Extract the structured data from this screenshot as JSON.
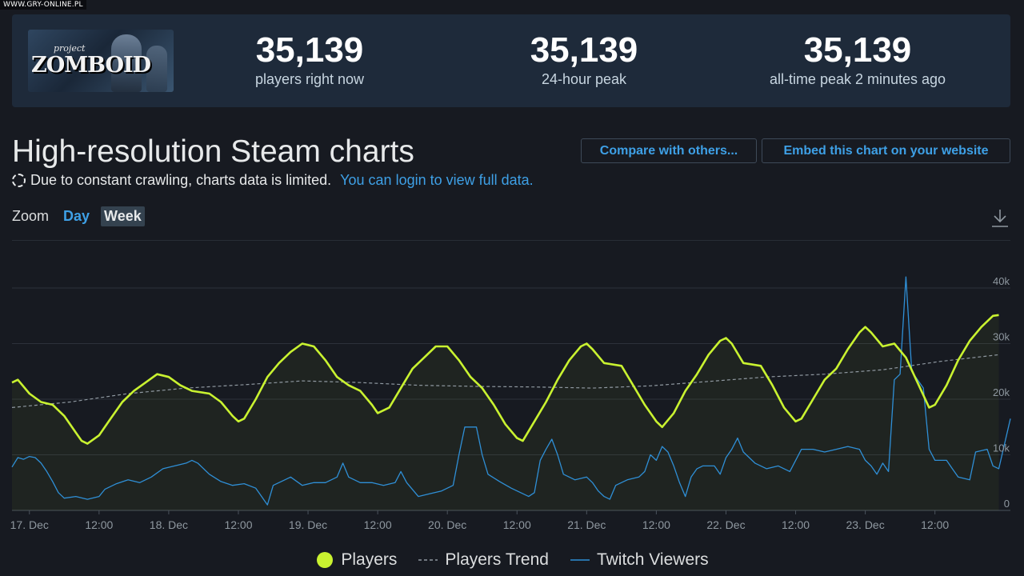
{
  "watermark": "WWW.GRY-ONLINE.PL",
  "game": {
    "logo_small": "project",
    "logo_big": "ZOMBOID"
  },
  "stats": [
    {
      "value": "35,139",
      "label": "players right now"
    },
    {
      "value": "35,139",
      "label": "24-hour peak"
    },
    {
      "value": "35,139",
      "label": "all-time peak 2 minutes ago"
    }
  ],
  "page": {
    "title": "High-resolution Steam charts",
    "notice": "Due to constant crawling, charts data is limited.",
    "notice_link": "You can login to view full data."
  },
  "buttons": {
    "compare": "Compare with others...",
    "embed": "Embed this chart on your website"
  },
  "zoom": {
    "label": "Zoom",
    "options": [
      "Day",
      "Week"
    ],
    "selected": "Week"
  },
  "colors": {
    "players": "#c9f230",
    "trend": "#8f98a0",
    "twitch": "#2f8fd6",
    "grid": "#2c313a",
    "axis_text": "#8f98a0",
    "accent_link": "#3ea0e6"
  },
  "chart_data": {
    "type": "line",
    "x_range_hours": [
      0,
      172
    ],
    "y_range": [
      0,
      40000
    ],
    "y_ticks": [
      {
        "value": 0,
        "label": "0"
      },
      {
        "value": 10000,
        "label": "10k"
      },
      {
        "value": 20000,
        "label": "20k"
      },
      {
        "value": 30000,
        "label": "30k"
      },
      {
        "value": 40000,
        "label": "40k"
      }
    ],
    "x_ticks": [
      {
        "hour": 3,
        "label": "17. Dec"
      },
      {
        "hour": 15,
        "label": "12:00"
      },
      {
        "hour": 27,
        "label": "18. Dec"
      },
      {
        "hour": 39,
        "label": "12:00"
      },
      {
        "hour": 51,
        "label": "19. Dec"
      },
      {
        "hour": 63,
        "label": "12:00"
      },
      {
        "hour": 75,
        "label": "20. Dec"
      },
      {
        "hour": 87,
        "label": "12:00"
      },
      {
        "hour": 99,
        "label": "21. Dec"
      },
      {
        "hour": 111,
        "label": "12:00"
      },
      {
        "hour": 123,
        "label": "22. Dec"
      },
      {
        "hour": 135,
        "label": "12:00"
      },
      {
        "hour": 147,
        "label": "23. Dec"
      },
      {
        "hour": 159,
        "label": "12:00"
      }
    ],
    "series": [
      {
        "name": "Players",
        "points": [
          [
            0,
            23000
          ],
          [
            1,
            23500
          ],
          [
            3,
            21000
          ],
          [
            5,
            19500
          ],
          [
            7,
            19000
          ],
          [
            9,
            17000
          ],
          [
            11,
            14000
          ],
          [
            12,
            12500
          ],
          [
            13,
            12000
          ],
          [
            15,
            13500
          ],
          [
            17,
            16500
          ],
          [
            19,
            19500
          ],
          [
            21,
            21500
          ],
          [
            23,
            23000
          ],
          [
            25,
            24500
          ],
          [
            27,
            24000
          ],
          [
            29,
            22500
          ],
          [
            31,
            21500
          ],
          [
            34,
            21000
          ],
          [
            36,
            19500
          ],
          [
            38,
            17000
          ],
          [
            39,
            16000
          ],
          [
            40,
            16500
          ],
          [
            42,
            20000
          ],
          [
            44,
            24000
          ],
          [
            46,
            26500
          ],
          [
            48,
            28500
          ],
          [
            50,
            30000
          ],
          [
            52,
            29500
          ],
          [
            54,
            27000
          ],
          [
            56,
            24000
          ],
          [
            58,
            22500
          ],
          [
            60,
            21500
          ],
          [
            62,
            19000
          ],
          [
            63,
            17500
          ],
          [
            65,
            18500
          ],
          [
            67,
            22000
          ],
          [
            69,
            25500
          ],
          [
            71,
            27500
          ],
          [
            73,
            29500
          ],
          [
            75,
            29500
          ],
          [
            77,
            27000
          ],
          [
            79,
            24000
          ],
          [
            81,
            22000
          ],
          [
            83,
            19000
          ],
          [
            85,
            15500
          ],
          [
            87,
            13000
          ],
          [
            88,
            12500
          ],
          [
            90,
            16000
          ],
          [
            92,
            19500
          ],
          [
            94,
            23500
          ],
          [
            96,
            27000
          ],
          [
            98,
            29500
          ],
          [
            99,
            30000
          ],
          [
            100,
            29000
          ],
          [
            102,
            26500
          ],
          [
            105,
            26000
          ],
          [
            107,
            22500
          ],
          [
            109,
            19000
          ],
          [
            111,
            16000
          ],
          [
            112,
            15000
          ],
          [
            114,
            17500
          ],
          [
            116,
            21500
          ],
          [
            118,
            24500
          ],
          [
            120,
            28000
          ],
          [
            122,
            30500
          ],
          [
            123,
            31000
          ],
          [
            124,
            30000
          ],
          [
            126,
            26500
          ],
          [
            129,
            26000
          ],
          [
            131,
            22500
          ],
          [
            133,
            18500
          ],
          [
            135,
            16000
          ],
          [
            136,
            16500
          ],
          [
            138,
            20000
          ],
          [
            140,
            23500
          ],
          [
            142,
            25500
          ],
          [
            144,
            29000
          ],
          [
            146,
            32000
          ],
          [
            147,
            33000
          ],
          [
            148,
            32000
          ],
          [
            150,
            29500
          ],
          [
            152,
            30000
          ],
          [
            154,
            27500
          ],
          [
            156,
            23000
          ],
          [
            158,
            18500
          ],
          [
            159,
            19000
          ],
          [
            161,
            22500
          ],
          [
            163,
            27000
          ],
          [
            165,
            30500
          ],
          [
            167,
            33000
          ],
          [
            169,
            35000
          ],
          [
            170,
            35139
          ]
        ]
      },
      {
        "name": "Players Trend",
        "points": [
          [
            0,
            18500
          ],
          [
            10,
            19500
          ],
          [
            20,
            21000
          ],
          [
            30,
            22000
          ],
          [
            40,
            22600
          ],
          [
            50,
            23300
          ],
          [
            60,
            23000
          ],
          [
            70,
            22500
          ],
          [
            80,
            22300
          ],
          [
            90,
            22200
          ],
          [
            100,
            22000
          ],
          [
            110,
            22400
          ],
          [
            120,
            23200
          ],
          [
            130,
            24000
          ],
          [
            140,
            24500
          ],
          [
            150,
            25300
          ],
          [
            160,
            26800
          ],
          [
            170,
            28000
          ]
        ]
      },
      {
        "name": "Twitch Viewers",
        "points": [
          [
            0,
            7800
          ],
          [
            1,
            9500
          ],
          [
            2,
            9200
          ],
          [
            3,
            9700
          ],
          [
            4,
            9500
          ],
          [
            5,
            8500
          ],
          [
            6,
            7000
          ],
          [
            7,
            5200
          ],
          [
            8,
            3200
          ],
          [
            9,
            2200
          ],
          [
            11,
            2500
          ],
          [
            13,
            2000
          ],
          [
            15,
            2500
          ],
          [
            16,
            3800
          ],
          [
            18,
            4800
          ],
          [
            20,
            5500
          ],
          [
            22,
            5000
          ],
          [
            24,
            6000
          ],
          [
            26,
            7500
          ],
          [
            28,
            8000
          ],
          [
            30,
            8500
          ],
          [
            31,
            9000
          ],
          [
            32,
            8500
          ],
          [
            34,
            6500
          ],
          [
            36,
            5200
          ],
          [
            38,
            4500
          ],
          [
            40,
            4800
          ],
          [
            42,
            4000
          ],
          [
            43,
            2500
          ],
          [
            44,
            1000
          ],
          [
            45,
            4500
          ],
          [
            47,
            5500
          ],
          [
            48,
            6000
          ],
          [
            50,
            4500
          ],
          [
            52,
            5000
          ],
          [
            54,
            5000
          ],
          [
            56,
            6000
          ],
          [
            57,
            8500
          ],
          [
            58,
            6000
          ],
          [
            60,
            5000
          ],
          [
            62,
            5000
          ],
          [
            64,
            4500
          ],
          [
            66,
            5000
          ],
          [
            67,
            7000
          ],
          [
            68,
            5000
          ],
          [
            70,
            2500
          ],
          [
            72,
            3000
          ],
          [
            74,
            3500
          ],
          [
            76,
            4500
          ],
          [
            77,
            10000
          ],
          [
            78,
            15000
          ],
          [
            80,
            15000
          ],
          [
            81,
            10000
          ],
          [
            82,
            6500
          ],
          [
            84,
            5200
          ],
          [
            86,
            4000
          ],
          [
            88,
            3000
          ],
          [
            89,
            2500
          ],
          [
            90,
            3200
          ],
          [
            91,
            9000
          ],
          [
            92,
            11000
          ],
          [
            93,
            12800
          ],
          [
            94,
            10000
          ],
          [
            95,
            6500
          ],
          [
            97,
            5500
          ],
          [
            99,
            6000
          ],
          [
            100,
            5000
          ],
          [
            101,
            3500
          ],
          [
            102,
            2500
          ],
          [
            103,
            2000
          ],
          [
            104,
            4500
          ],
          [
            106,
            5500
          ],
          [
            108,
            6000
          ],
          [
            109,
            7000
          ],
          [
            110,
            10000
          ],
          [
            111,
            9000
          ],
          [
            112,
            11500
          ],
          [
            113,
            10500
          ],
          [
            114,
            8000
          ],
          [
            115,
            5000
          ],
          [
            116,
            2500
          ],
          [
            117,
            6000
          ],
          [
            118,
            7500
          ],
          [
            119,
            8000
          ],
          [
            121,
            8000
          ],
          [
            122,
            6500
          ],
          [
            123,
            9500
          ],
          [
            124,
            11000
          ],
          [
            125,
            13000
          ],
          [
            126,
            10500
          ],
          [
            128,
            8500
          ],
          [
            130,
            7500
          ],
          [
            132,
            8000
          ],
          [
            134,
            7000
          ],
          [
            136,
            11000
          ],
          [
            138,
            11000
          ],
          [
            140,
            10500
          ],
          [
            142,
            11000
          ],
          [
            144,
            11500
          ],
          [
            146,
            11000
          ],
          [
            147,
            9000
          ],
          [
            148,
            8000
          ],
          [
            149,
            6500
          ],
          [
            150,
            8500
          ],
          [
            151,
            7000
          ],
          [
            152,
            23500
          ],
          [
            153,
            24500
          ],
          [
            154,
            42000
          ],
          [
            155,
            25000
          ],
          [
            157,
            22000
          ],
          [
            158,
            11000
          ],
          [
            159,
            9000
          ],
          [
            161,
            9000
          ],
          [
            162,
            7500
          ],
          [
            163,
            6000
          ],
          [
            165,
            5500
          ],
          [
            166,
            10500
          ],
          [
            168,
            11000
          ],
          [
            169,
            8000
          ],
          [
            170,
            7500
          ],
          [
            172,
            16500
          ]
        ]
      }
    ]
  }
}
